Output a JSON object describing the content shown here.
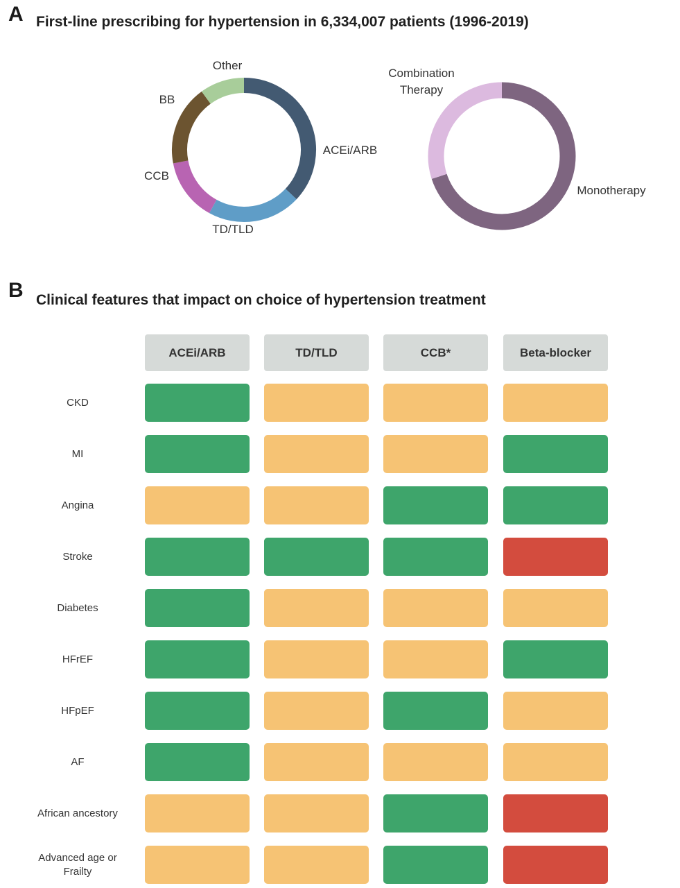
{
  "panel_a": {
    "letter": "A",
    "title": "First-line prescribing for hypertension in 6,334,007 patients (1996-2019)"
  },
  "panel_b": {
    "letter": "B",
    "title": "Clinical features that impact on choice of hypertension treatment"
  },
  "colors": {
    "favourable": "#3ea56b",
    "neutral": "#f6c374",
    "unfavourable": "#d34c3e",
    "header": "#d6dad8"
  },
  "chart_data": [
    {
      "type": "pie",
      "title": "",
      "labels": [
        "ACEi/ARB",
        "TD/TLD",
        "CCB",
        "BB",
        "Other"
      ],
      "values": [
        37,
        21,
        14,
        18,
        10
      ],
      "colors": [
        "#435a72",
        "#5f9dc7",
        "#b864b2",
        "#6c5430",
        "#a8cd9a"
      ]
    },
    {
      "type": "pie",
      "title": "",
      "labels": [
        "Monotherapy",
        "Combination Therapy"
      ],
      "label_lines": [
        [
          "Monotherapy"
        ],
        [
          "Combination",
          "Therapy"
        ]
      ],
      "values": [
        70,
        30
      ],
      "colors": [
        "#7e6580",
        "#dcbadf"
      ]
    },
    {
      "type": "table",
      "title": "Clinical features that impact on choice of hypertension treatment",
      "columns": [
        "ACEi/ARB",
        "TD/TLD",
        "CCB*",
        "Beta-blocker"
      ],
      "rows": [
        {
          "label": "CKD",
          "lines": [
            "CKD"
          ],
          "values": [
            "favourable",
            "neutral",
            "neutral",
            "neutral"
          ]
        },
        {
          "label": "MI",
          "lines": [
            "MI"
          ],
          "values": [
            "favourable",
            "neutral",
            "neutral",
            "favourable"
          ]
        },
        {
          "label": "Angina",
          "lines": [
            "Angina"
          ],
          "values": [
            "neutral",
            "neutral",
            "favourable",
            "favourable"
          ]
        },
        {
          "label": "Stroke",
          "lines": [
            "Stroke"
          ],
          "values": [
            "favourable",
            "favourable",
            "favourable",
            "unfavourable"
          ]
        },
        {
          "label": "Diabetes",
          "lines": [
            "Diabetes"
          ],
          "values": [
            "favourable",
            "neutral",
            "neutral",
            "neutral"
          ]
        },
        {
          "label": "HFrEF",
          "lines": [
            "HFrEF"
          ],
          "values": [
            "favourable",
            "neutral",
            "neutral",
            "favourable"
          ]
        },
        {
          "label": "HFpEF",
          "lines": [
            "HFpEF"
          ],
          "values": [
            "favourable",
            "neutral",
            "favourable",
            "neutral"
          ]
        },
        {
          "label": "AF",
          "lines": [
            "AF"
          ],
          "values": [
            "favourable",
            "neutral",
            "neutral",
            "neutral"
          ]
        },
        {
          "label": "African ancestory",
          "lines": [
            "African ancestory"
          ],
          "values": [
            "neutral",
            "neutral",
            "favourable",
            "unfavourable"
          ]
        },
        {
          "label": "Advanced age or Frailty",
          "lines": [
            "Advanced age or",
            "Frailty"
          ],
          "values": [
            "neutral",
            "neutral",
            "favourable",
            "unfavourable"
          ]
        }
      ]
    }
  ]
}
